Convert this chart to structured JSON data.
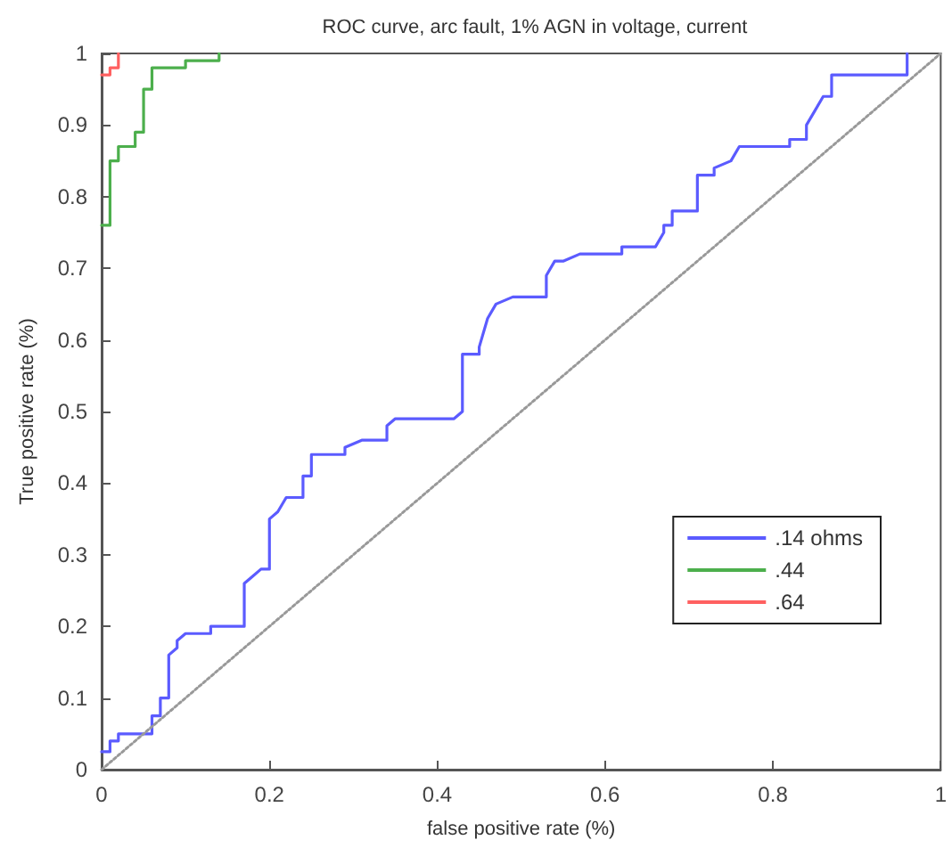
{
  "chart_data": {
    "type": "line",
    "title": "ROC curve, arc fault, 1% AGN in voltage, current",
    "xlabel": "false positive rate (%)",
    "ylabel": "True positive rate (%)",
    "xlim": [
      0,
      1
    ],
    "ylim": [
      0,
      1
    ],
    "xticks": [
      0,
      0.2,
      0.4,
      0.6,
      0.8,
      1
    ],
    "yticks": [
      0,
      0.1,
      0.2,
      0.3,
      0.4,
      0.5,
      0.6,
      0.7,
      0.8,
      0.9,
      1
    ],
    "grid": false,
    "legend": "bottom right",
    "marker": "none",
    "series": [
      {
        "name": ".14 ohms",
        "color": "#5b5bff",
        "line_style": "solid",
        "x": [
          0,
          0.01,
          0.01,
          0.02,
          0.02,
          0.06,
          0.06,
          0.07,
          0.07,
          0.08,
          0.08,
          0.09,
          0.09,
          0.1,
          0.13,
          0.13,
          0.17,
          0.17,
          0.18,
          0.19,
          0.2,
          0.2,
          0.21,
          0.22,
          0.23,
          0.24,
          0.24,
          0.25,
          0.25,
          0.29,
          0.29,
          0.31,
          0.34,
          0.34,
          0.35,
          0.42,
          0.43,
          0.43,
          0.45,
          0.45,
          0.46,
          0.47,
          0.49,
          0.53,
          0.53,
          0.54,
          0.55,
          0.57,
          0.57,
          0.62,
          0.62,
          0.66,
          0.67,
          0.67,
          0.68,
          0.68,
          0.71,
          0.71,
          0.73,
          0.73,
          0.75,
          0.76,
          0.82,
          0.82,
          0.84,
          0.84,
          0.85,
          0.86,
          0.87,
          0.87,
          0.96,
          0.96
        ],
        "values": [
          0.025,
          0.025,
          0.04,
          0.04,
          0.05,
          0.05,
          0.075,
          0.075,
          0.1,
          0.1,
          0.16,
          0.17,
          0.18,
          0.19,
          0.19,
          0.2,
          0.2,
          0.26,
          0.27,
          0.28,
          0.28,
          0.35,
          0.36,
          0.38,
          0.38,
          0.38,
          0.41,
          0.41,
          0.44,
          0.44,
          0.45,
          0.46,
          0.46,
          0.48,
          0.49,
          0.49,
          0.5,
          0.58,
          0.58,
          0.59,
          0.63,
          0.65,
          0.66,
          0.66,
          0.69,
          0.71,
          0.71,
          0.72,
          0.72,
          0.72,
          0.73,
          0.73,
          0.75,
          0.76,
          0.76,
          0.78,
          0.78,
          0.83,
          0.83,
          0.84,
          0.85,
          0.87,
          0.87,
          0.88,
          0.88,
          0.9,
          0.92,
          0.94,
          0.94,
          0.97,
          0.97,
          1
        ]
      },
      {
        "name": ".44",
        "color": "#4caf4c",
        "line_style": "solid",
        "x": [
          0,
          0.01,
          0.01,
          0.02,
          0.02,
          0.04,
          0.04,
          0.05,
          0.05,
          0.06,
          0.06,
          0.1,
          0.1,
          0.14,
          0.14
        ],
        "values": [
          0.76,
          0.76,
          0.85,
          0.85,
          0.87,
          0.87,
          0.89,
          0.89,
          0.95,
          0.95,
          0.98,
          0.98,
          0.99,
          0.99,
          1
        ]
      },
      {
        "name": ".64",
        "color": "#ff6060",
        "line_style": "solid",
        "x": [
          0,
          0.01,
          0.01,
          0.02,
          0.02
        ],
        "values": [
          0.97,
          0.97,
          0.98,
          0.98,
          1
        ]
      },
      {
        "color": "#999999",
        "line_style": "dotted",
        "x": [
          0,
          1
        ],
        "values": [
          0,
          1
        ]
      }
    ]
  }
}
